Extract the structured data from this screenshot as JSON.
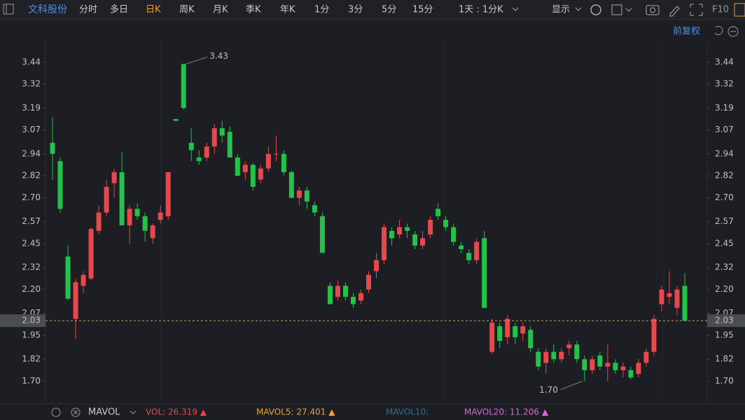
{
  "toolbar": {
    "stock": "文科股份",
    "tabs": [
      "分时",
      "多日",
      "日K",
      "周K",
      "月K",
      "季K",
      "年K",
      "1分",
      "3分",
      "5分",
      "15分",
      "1天 : 1分K"
    ],
    "active_tab": 2,
    "display": "显示",
    "f10": "F10"
  },
  "adjust": "前复权",
  "chart_data": {
    "type": "candlestick",
    "up_color": "#e8474c",
    "down_color": "#24c24a",
    "open": [
      3.0,
      2.9,
      2.38,
      2.04,
      2.22,
      2.26,
      2.52,
      2.62,
      2.78,
      2.84,
      2.55,
      2.64,
      2.6,
      2.48,
      2.58,
      2.6,
      3.13,
      3.43,
      3.0,
      2.92,
      2.92,
      2.98,
      3.08,
      3.06,
      2.92,
      2.84,
      2.88,
      2.8,
      2.86,
      2.94,
      2.94,
      2.84,
      2.7,
      2.74,
      2.66,
      2.6,
      2.22,
      2.16,
      2.22,
      2.16,
      2.14,
      2.2,
      2.3,
      2.36,
      2.52,
      2.5,
      2.54,
      2.5,
      2.44,
      2.5,
      2.64,
      2.58,
      2.54,
      2.44,
      2.4,
      2.36,
      2.48,
      1.86,
      2.0,
      1.94,
      2.0,
      1.96,
      1.98,
      1.86,
      1.8,
      1.86,
      1.82,
      1.88,
      1.9,
      1.82,
      1.76,
      1.84,
      1.78,
      1.8,
      1.76,
      1.76,
      1.74,
      1.8,
      1.86,
      2.12,
      2.16,
      2.1,
      2.22
    ],
    "high": [
      3.14,
      2.92,
      2.44,
      2.26,
      2.3,
      2.54,
      2.66,
      2.8,
      2.86,
      2.95,
      2.66,
      2.67,
      2.62,
      2.56,
      2.66,
      2.84,
      3.13,
      3.43,
      3.08,
      2.96,
      3.0,
      3.1,
      3.12,
      3.09,
      2.94,
      2.9,
      2.89,
      2.88,
      2.98,
      3.04,
      2.96,
      2.85,
      2.76,
      2.76,
      2.68,
      2.62,
      2.24,
      2.25,
      2.24,
      2.18,
      2.2,
      2.3,
      2.4,
      2.56,
      2.54,
      2.58,
      2.56,
      2.52,
      2.52,
      2.6,
      2.67,
      2.6,
      2.56,
      2.46,
      2.42,
      2.48,
      2.52,
      2.04,
      2.02,
      2.06,
      2.02,
      2.02,
      2.0,
      1.88,
      1.88,
      1.9,
      1.88,
      1.92,
      1.92,
      1.84,
      1.84,
      1.86,
      1.9,
      1.82,
      1.8,
      1.78,
      1.82,
      1.88,
      2.06,
      2.22,
      2.3,
      2.22,
      2.29
    ],
    "low": [
      2.8,
      2.62,
      2.14,
      1.93,
      2.18,
      2.25,
      2.5,
      2.6,
      2.7,
      2.55,
      2.45,
      2.58,
      2.46,
      2.45,
      2.56,
      2.58,
      3.12,
      3.18,
      2.9,
      2.88,
      2.9,
      2.94,
      3.0,
      2.92,
      2.82,
      2.8,
      2.74,
      2.78,
      2.84,
      2.9,
      2.82,
      2.7,
      2.66,
      2.64,
      2.6,
      2.4,
      2.12,
      2.14,
      2.14,
      2.1,
      2.12,
      2.18,
      2.26,
      2.34,
      2.44,
      2.48,
      2.48,
      2.42,
      2.42,
      2.48,
      2.58,
      2.52,
      2.44,
      2.4,
      2.34,
      2.34,
      2.1,
      1.85,
      1.88,
      1.9,
      1.9,
      1.92,
      1.86,
      1.76,
      1.74,
      1.8,
      1.8,
      1.84,
      1.8,
      1.7,
      1.74,
      1.76,
      1.7,
      1.74,
      1.72,
      1.71,
      1.72,
      1.78,
      1.84,
      2.08,
      2.12,
      2.06,
      2.03
    ],
    "close": [
      2.94,
      2.64,
      2.15,
      2.24,
      2.28,
      2.53,
      2.62,
      2.76,
      2.84,
      2.55,
      2.64,
      2.6,
      2.52,
      2.55,
      2.62,
      2.84,
      3.12,
      3.19,
      2.96,
      2.9,
      2.98,
      3.08,
      3.04,
      2.92,
      2.82,
      2.88,
      2.76,
      2.86,
      2.94,
      2.94,
      2.84,
      2.7,
      2.74,
      2.68,
      2.62,
      2.4,
      2.12,
      2.22,
      2.16,
      2.12,
      2.18,
      2.28,
      2.36,
      2.54,
      2.48,
      2.54,
      2.52,
      2.44,
      2.48,
      2.58,
      2.6,
      2.54,
      2.46,
      2.42,
      2.36,
      2.46,
      2.1,
      2.02,
      1.92,
      2.04,
      1.94,
      2.0,
      1.88,
      1.78,
      1.86,
      1.82,
      1.86,
      1.9,
      1.82,
      1.76,
      1.82,
      1.78,
      1.8,
      1.76,
      1.78,
      1.72,
      1.8,
      1.86,
      2.04,
      2.2,
      2.18,
      2.2,
      2.03
    ],
    "high_label": 3.43,
    "low_label": {
      "value": 1.7,
      "label": "1.70"
    },
    "current_price": 2.03,
    "current_color": "#e0a040",
    "ylim": [
      1.58,
      3.55
    ],
    "yticks": [
      3.44,
      3.32,
      3.19,
      3.07,
      2.94,
      2.82,
      {
        "value": 2.7,
        "label": "2.70"
      },
      2.57,
      2.45,
      2.32,
      {
        "value": 2.2,
        "label": "2.20"
      },
      2.07,
      1.95,
      1.82,
      {
        "value": 1.7,
        "label": "1.70"
      }
    ]
  },
  "indicator": {
    "name": "MAVOL",
    "items": [
      {
        "text": "VOL: 26.319 ▲",
        "color": "#e8474c"
      },
      {
        "text": "MAVOL5: 27.401 ▲",
        "color": "#f0a030"
      },
      {
        "text": "MAVOL10:",
        "color": "#2d6f99"
      },
      {
        "text": "MAVOL20: 11.206 ▲",
        "color": "#d36ad3"
      }
    ]
  }
}
